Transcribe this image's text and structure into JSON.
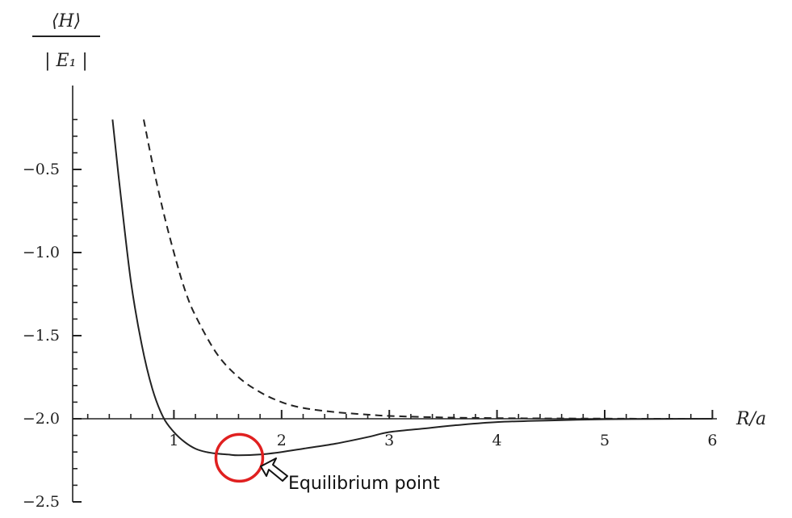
{
  "chart_data": {
    "type": "line",
    "ylabel_numerator": "⟨H⟩",
    "ylabel_denominator": "| E₁ |",
    "xlabel": "R/a",
    "xlim": [
      0,
      6
    ],
    "ylim": [
      -2.5,
      -0.2
    ],
    "x_ticks": [
      "1",
      "2",
      "3",
      "4",
      "5",
      "6"
    ],
    "y_ticks": [
      "−0.5",
      "−1.0",
      "−1.5",
      "−2.0",
      "−2.5"
    ],
    "grid": false,
    "series": [
      {
        "style": "solid",
        "color": "#222222",
        "x": [
          0.43,
          0.5,
          0.6,
          0.7,
          0.8,
          0.9,
          1.0,
          1.1,
          1.2,
          1.3,
          1.4,
          1.5,
          1.6,
          1.8,
          2.0,
          2.2,
          2.5,
          2.8,
          3.0,
          3.3,
          3.6,
          4.0,
          4.5,
          5.0,
          5.5,
          6.0
        ],
        "y": [
          -0.2,
          -0.62,
          -1.17,
          -1.55,
          -1.82,
          -1.99,
          -2.08,
          -2.14,
          -2.18,
          -2.2,
          -2.21,
          -2.215,
          -2.22,
          -2.215,
          -2.2,
          -2.18,
          -2.15,
          -2.11,
          -2.08,
          -2.06,
          -2.04,
          -2.02,
          -2.01,
          -2.003,
          -2.001,
          -2.0
        ]
      },
      {
        "style": "dashed",
        "color": "#222222",
        "x": [
          0.72,
          0.8,
          0.9,
          1.0,
          1.1,
          1.2,
          1.4,
          1.6,
          1.8,
          2.0,
          2.2,
          2.5,
          2.8,
          3.0,
          3.5,
          4.0,
          4.5,
          5.0,
          5.5,
          6.0
        ],
        "y": [
          -0.2,
          -0.46,
          -0.75,
          -1.0,
          -1.22,
          -1.38,
          -1.61,
          -1.75,
          -1.84,
          -1.9,
          -1.935,
          -1.96,
          -1.975,
          -1.983,
          -1.992,
          -1.996,
          -1.998,
          -1.999,
          -2.0,
          -2.0
        ]
      }
    ],
    "annotation": {
      "text": "Equilibrium point",
      "x": 1.6,
      "y": -2.22,
      "marker_color": "#e02020"
    }
  }
}
